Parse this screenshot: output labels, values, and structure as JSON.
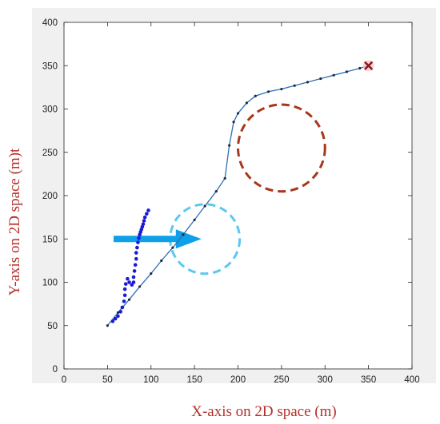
{
  "chart_data": {
    "type": "scatter",
    "title": "",
    "xlabel": "X-axis on 2D space (m)",
    "ylabel": "Y-axis on 2D space (m)t",
    "xlim": [
      0,
      400
    ],
    "ylim": [
      0,
      400
    ],
    "xticks": [
      "0",
      "50",
      "100",
      "150",
      "200",
      "250",
      "300",
      "350",
      "400"
    ],
    "yticks": [
      "0",
      "50",
      "100",
      "150",
      "200",
      "250",
      "300",
      "350",
      "400"
    ],
    "grid": false,
    "legend": "none",
    "background_color": "#f0f0f0",
    "plot_area_color": "#ffffff",
    "series": [
      {
        "kind": "path-line-with-markers",
        "color": "#2e6fb5",
        "marker_color": "#1f2a44",
        "x": [
          50,
          62,
          75,
          87,
          100,
          112,
          125,
          137,
          150,
          162,
          175,
          185,
          190,
          195,
          200,
          210,
          220,
          235,
          250,
          265,
          280,
          295,
          310,
          325,
          340,
          350
        ],
        "y": [
          50,
          65,
          80,
          95,
          110,
          125,
          140,
          155,
          172,
          188,
          205,
          220,
          258,
          285,
          295,
          307,
          315,
          320,
          323,
          327,
          331,
          335,
          339,
          343,
          347,
          350
        ]
      },
      {
        "kind": "trajectory-dots",
        "color": "#1a1ad6",
        "x": [
          56,
          59,
          62,
          65,
          67,
          69,
          70,
          70,
          71,
          73,
          75,
          78,
          80,
          80,
          81,
          82,
          83,
          83,
          84,
          85,
          86,
          87,
          88,
          89,
          90,
          91,
          92,
          93,
          95,
          97
        ],
        "y": [
          55,
          58,
          61,
          66,
          71,
          78,
          85,
          92,
          98,
          104,
          100,
          97,
          100,
          106,
          113,
          120,
          127,
          134,
          140,
          146,
          151,
          155,
          158,
          161,
          164,
          167,
          171,
          175,
          179,
          183
        ]
      }
    ],
    "start_point": {
      "x": 50,
      "y": 50
    },
    "goal_marker": {
      "x": 350,
      "y": 350,
      "symbol": "x",
      "color": "#8b1a1a"
    },
    "obstacles": [
      {
        "cx": 250,
        "cy": 255,
        "r": 50,
        "color": "#a8361b",
        "style": "dashed"
      },
      {
        "cx": 162,
        "cy": 150,
        "r": 40,
        "color": "#5bc8ef",
        "style": "dashed"
      }
    ],
    "annotation_arrow": {
      "from_x": 57,
      "to_x": 158,
      "y": 150,
      "color": "#0ea0e8"
    }
  }
}
